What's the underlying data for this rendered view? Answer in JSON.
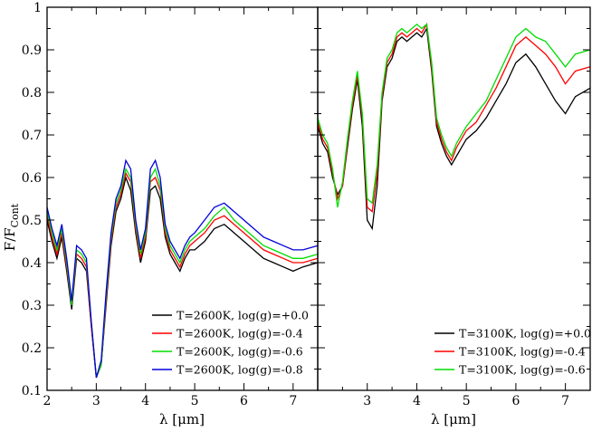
{
  "figure": {
    "ylabel_main": "F/F",
    "ylabel_sub": "Cont",
    "xlabel_left": "λ [μm]",
    "xlabel_right": "λ [μm]"
  },
  "chart_data": [
    {
      "type": "line",
      "panel": "left",
      "xlabel": "λ [μm]",
      "ylabel": "F/F_Cont",
      "xlim": [
        2.0,
        7.5
      ],
      "ylim": [
        0.1,
        1.0
      ],
      "xticks": [
        2,
        3,
        4,
        5,
        6,
        7
      ],
      "yticks": [
        0.1,
        0.2,
        0.3,
        0.4,
        0.5,
        0.6,
        0.7,
        0.8,
        0.9,
        1.0
      ],
      "ytick_labels": [
        "0.1",
        "0.2",
        "0.3",
        "0.4",
        "0.5",
        "0.6",
        "0.7",
        "0.8",
        "0.9",
        "1"
      ],
      "grid": false,
      "legend_position": "bottom-right",
      "x": [
        2.0,
        2.1,
        2.2,
        2.3,
        2.4,
        2.5,
        2.6,
        2.7,
        2.8,
        2.9,
        3.0,
        3.1,
        3.2,
        3.3,
        3.4,
        3.5,
        3.6,
        3.7,
        3.8,
        3.9,
        4.0,
        4.1,
        4.2,
        4.3,
        4.4,
        4.5,
        4.6,
        4.7,
        4.8,
        4.9,
        5.0,
        5.2,
        5.4,
        5.6,
        5.8,
        6.0,
        6.2,
        6.4,
        6.6,
        6.8,
        7.0,
        7.2,
        7.5
      ],
      "series": [
        {
          "name": "T=2600K, log(g)=+0.0",
          "color": "#000000",
          "values": [
            0.5,
            0.45,
            0.41,
            0.46,
            0.38,
            0.29,
            0.41,
            0.4,
            0.38,
            0.25,
            0.13,
            0.16,
            0.3,
            0.44,
            0.52,
            0.55,
            0.6,
            0.57,
            0.47,
            0.4,
            0.45,
            0.57,
            0.58,
            0.55,
            0.46,
            0.42,
            0.4,
            0.38,
            0.41,
            0.43,
            0.43,
            0.45,
            0.48,
            0.49,
            0.47,
            0.45,
            0.43,
            0.41,
            0.4,
            0.39,
            0.38,
            0.39,
            0.4
          ]
        },
        {
          "name": "T=2600K, log(g)=-0.4",
          "color": "#ff0000",
          "values": [
            0.51,
            0.46,
            0.42,
            0.47,
            0.39,
            0.3,
            0.42,
            0.41,
            0.39,
            0.25,
            0.13,
            0.16,
            0.31,
            0.45,
            0.53,
            0.56,
            0.61,
            0.59,
            0.48,
            0.41,
            0.46,
            0.59,
            0.6,
            0.57,
            0.47,
            0.43,
            0.41,
            0.39,
            0.42,
            0.44,
            0.45,
            0.47,
            0.5,
            0.51,
            0.49,
            0.47,
            0.45,
            0.43,
            0.42,
            0.41,
            0.4,
            0.4,
            0.41
          ]
        },
        {
          "name": "T=2600K, log(g)=-0.6",
          "color": "#00dd00",
          "values": [
            0.52,
            0.47,
            0.43,
            0.48,
            0.4,
            0.3,
            0.43,
            0.42,
            0.4,
            0.26,
            0.13,
            0.16,
            0.32,
            0.46,
            0.54,
            0.57,
            0.62,
            0.6,
            0.49,
            0.42,
            0.47,
            0.6,
            0.62,
            0.58,
            0.48,
            0.44,
            0.42,
            0.4,
            0.43,
            0.45,
            0.46,
            0.48,
            0.51,
            0.53,
            0.5,
            0.48,
            0.46,
            0.44,
            0.43,
            0.42,
            0.41,
            0.41,
            0.42
          ]
        },
        {
          "name": "T=2600K, log(g)=-0.8",
          "color": "#0000dd",
          "values": [
            0.53,
            0.48,
            0.44,
            0.49,
            0.41,
            0.31,
            0.44,
            0.43,
            0.41,
            0.26,
            0.13,
            0.17,
            0.33,
            0.47,
            0.55,
            0.58,
            0.64,
            0.62,
            0.5,
            0.43,
            0.48,
            0.62,
            0.64,
            0.6,
            0.49,
            0.45,
            0.43,
            0.41,
            0.44,
            0.46,
            0.47,
            0.5,
            0.53,
            0.54,
            0.52,
            0.5,
            0.48,
            0.46,
            0.45,
            0.44,
            0.43,
            0.43,
            0.44
          ]
        }
      ]
    },
    {
      "type": "line",
      "panel": "right",
      "xlabel": "λ [μm]",
      "xlim": [
        2.0,
        7.5
      ],
      "ylim": [
        0.1,
        1.0
      ],
      "xticks": [
        3,
        4,
        5,
        6,
        7
      ],
      "grid": false,
      "legend_position": "bottom-right",
      "x": [
        2.0,
        2.1,
        2.2,
        2.3,
        2.4,
        2.5,
        2.6,
        2.7,
        2.8,
        2.9,
        3.0,
        3.1,
        3.2,
        3.3,
        3.4,
        3.5,
        3.6,
        3.7,
        3.8,
        3.9,
        4.0,
        4.1,
        4.2,
        4.3,
        4.4,
        4.5,
        4.6,
        4.7,
        4.8,
        4.9,
        5.0,
        5.2,
        5.4,
        5.6,
        5.8,
        6.0,
        6.2,
        6.4,
        6.6,
        6.8,
        7.0,
        7.2,
        7.5
      ],
      "series": [
        {
          "name": "T=3100K, log(g)=+0.0",
          "color": "#000000",
          "values": [
            0.72,
            0.68,
            0.66,
            0.6,
            0.56,
            0.58,
            0.67,
            0.76,
            0.83,
            0.72,
            0.5,
            0.48,
            0.58,
            0.78,
            0.86,
            0.88,
            0.92,
            0.93,
            0.92,
            0.93,
            0.94,
            0.93,
            0.95,
            0.85,
            0.72,
            0.68,
            0.65,
            0.63,
            0.65,
            0.67,
            0.69,
            0.71,
            0.74,
            0.78,
            0.82,
            0.87,
            0.89,
            0.86,
            0.82,
            0.78,
            0.75,
            0.79,
            0.81
          ]
        },
        {
          "name": "T=3100K, log(g)=-0.4",
          "color": "#ff0000",
          "values": [
            0.73,
            0.69,
            0.67,
            0.61,
            0.55,
            0.58,
            0.68,
            0.77,
            0.84,
            0.74,
            0.53,
            0.52,
            0.61,
            0.79,
            0.87,
            0.89,
            0.93,
            0.94,
            0.93,
            0.94,
            0.95,
            0.94,
            0.96,
            0.86,
            0.73,
            0.69,
            0.66,
            0.64,
            0.67,
            0.69,
            0.71,
            0.73,
            0.77,
            0.81,
            0.86,
            0.91,
            0.93,
            0.91,
            0.89,
            0.86,
            0.82,
            0.85,
            0.86
          ]
        },
        {
          "name": "T=3100K, log(g)=-0.6",
          "color": "#00dd00",
          "values": [
            0.74,
            0.7,
            0.68,
            0.62,
            0.53,
            0.59,
            0.69,
            0.78,
            0.85,
            0.75,
            0.55,
            0.54,
            0.63,
            0.8,
            0.88,
            0.9,
            0.94,
            0.95,
            0.94,
            0.95,
            0.96,
            0.95,
            0.96,
            0.87,
            0.74,
            0.7,
            0.67,
            0.65,
            0.68,
            0.7,
            0.72,
            0.75,
            0.78,
            0.83,
            0.88,
            0.93,
            0.95,
            0.93,
            0.92,
            0.89,
            0.86,
            0.89,
            0.9
          ]
        }
      ]
    }
  ]
}
